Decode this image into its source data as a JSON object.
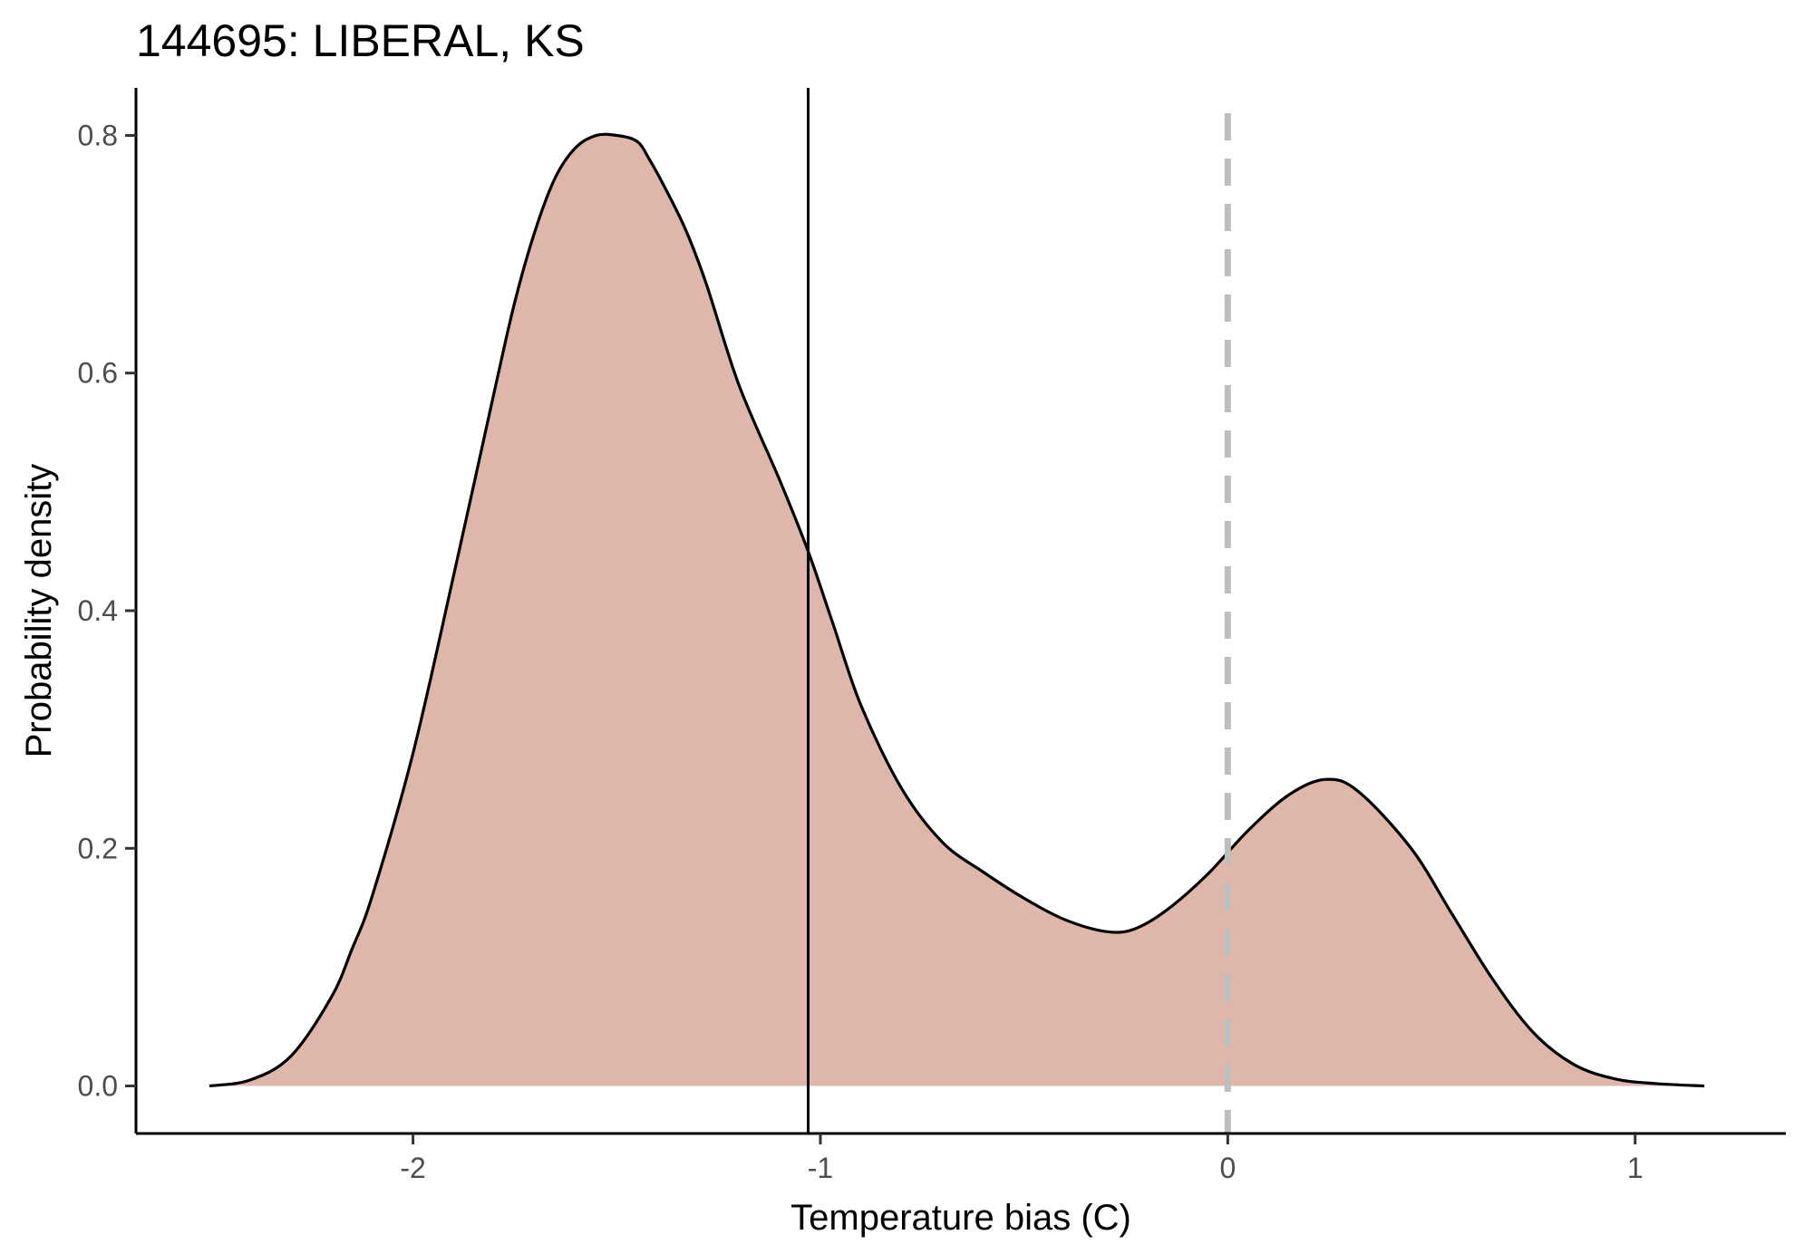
{
  "chart_data": {
    "type": "area",
    "title": "144695: LIBERAL, KS",
    "xlabel": "Temperature bias (C)",
    "ylabel": "Probability density",
    "xlim": [
      -2.68,
      1.37
    ],
    "ylim": [
      -0.04,
      0.84
    ],
    "xticks": [
      -2,
      -1,
      0,
      1
    ],
    "xtick_labels": [
      "-2",
      "-1",
      "0",
      "1"
    ],
    "yticks": [
      0.0,
      0.2,
      0.4,
      0.6,
      0.8
    ],
    "ytick_labels": [
      "0.0",
      "0.2",
      "0.4",
      "0.6",
      "0.8"
    ],
    "grid": false,
    "fill_color": "#dfb7aa",
    "line_color": "#000000",
    "series": [
      {
        "x": [
          -2.5,
          -2.4,
          -2.3,
          -2.2,
          -2.15,
          -2.1,
          -2.0,
          -1.9,
          -1.8,
          -1.75,
          -1.7,
          -1.65,
          -1.6,
          -1.55,
          -1.5,
          -1.45,
          -1.42,
          -1.38,
          -1.33,
          -1.28,
          -1.2,
          -1.1,
          -1.03,
          -0.97,
          -0.9,
          -0.8,
          -0.7,
          -0.6,
          -0.5,
          -0.4,
          -0.3,
          -0.23,
          -0.15,
          -0.05,
          0.05,
          0.15,
          0.24,
          0.32,
          0.45,
          0.55,
          0.65,
          0.75,
          0.85,
          0.95,
          1.05,
          1.17
        ],
        "y": [
          0.0,
          0.005,
          0.025,
          0.075,
          0.115,
          0.16,
          0.28,
          0.43,
          0.585,
          0.66,
          0.72,
          0.765,
          0.79,
          0.8,
          0.8,
          0.795,
          0.78,
          0.755,
          0.72,
          0.675,
          0.59,
          0.51,
          0.45,
          0.39,
          0.32,
          0.25,
          0.205,
          0.18,
          0.158,
          0.14,
          0.13,
          0.132,
          0.148,
          0.178,
          0.215,
          0.245,
          0.258,
          0.248,
          0.2,
          0.145,
          0.09,
          0.045,
          0.018,
          0.006,
          0.002,
          0.0
        ]
      }
    ],
    "vlines": [
      {
        "x": -1.03,
        "style": "solid",
        "color": "#000000"
      },
      {
        "x": 0.0,
        "style": "dashed",
        "color": "#bebebe"
      }
    ]
  }
}
